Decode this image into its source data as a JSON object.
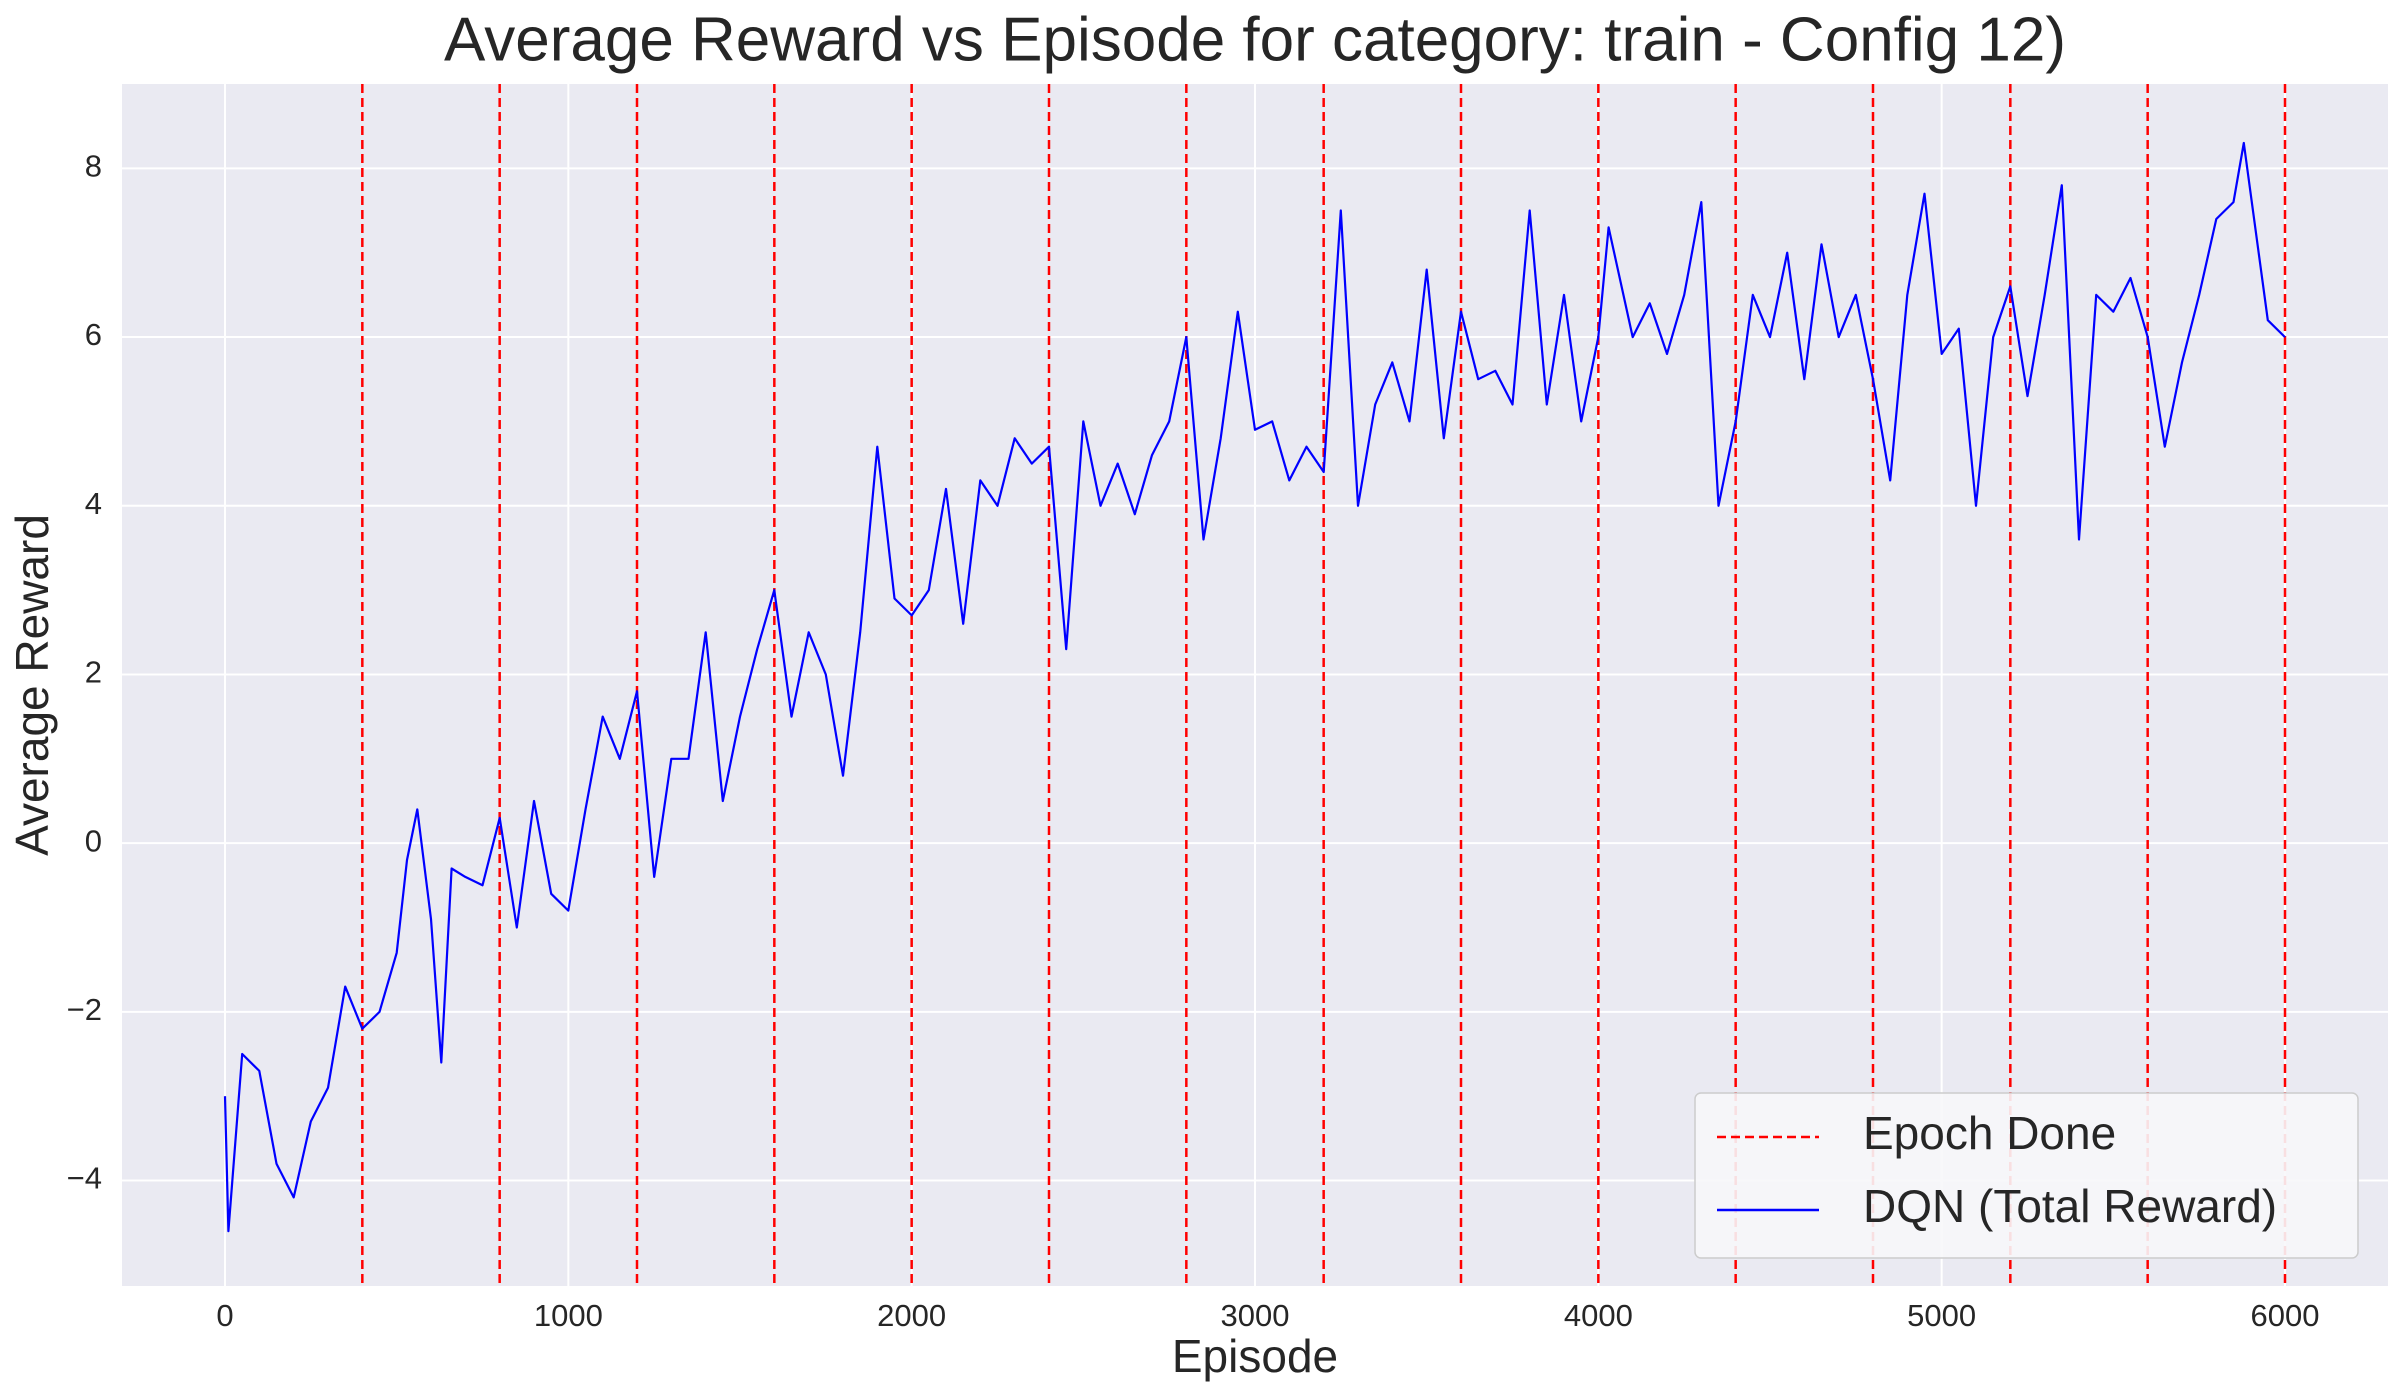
{
  "chart_data": {
    "type": "line",
    "title": "Average Reward vs Episode for category: train - Config 12)",
    "x_label": "Episode",
    "y_label": "Average Reward",
    "xlim": [
      -300,
      6300
    ],
    "ylim": [
      -5.25,
      9.0
    ],
    "xticks": [
      0,
      1000,
      2000,
      3000,
      4000,
      5000,
      6000
    ],
    "yticks": [
      {
        "value": -4,
        "label": "−4"
      },
      {
        "value": -2,
        "label": "−2"
      },
      0,
      2,
      4,
      6,
      8
    ],
    "grid": true,
    "legend": "lower right",
    "vlines": {
      "name": "Epoch Done",
      "color": "#ff0000",
      "values": [
        400,
        800,
        1200,
        1600,
        2000,
        2400,
        2800,
        3200,
        3600,
        4000,
        4400,
        4800,
        5200,
        5600,
        6000
      ]
    },
    "series": [
      {
        "name": "DQN (Total Reward)",
        "color": "#0000ff",
        "x": [
          0,
          10,
          50,
          100,
          150,
          200,
          250,
          300,
          350,
          400,
          450,
          500,
          530,
          560,
          600,
          630,
          660,
          700,
          750,
          800,
          850,
          900,
          950,
          1000,
          1050,
          1100,
          1150,
          1200,
          1250,
          1300,
          1350,
          1400,
          1450,
          1500,
          1550,
          1600,
          1650,
          1700,
          1750,
          1800,
          1850,
          1900,
          1950,
          2000,
          2050,
          2100,
          2150,
          2200,
          2250,
          2300,
          2350,
          2400,
          2450,
          2500,
          2550,
          2600,
          2650,
          2700,
          2750,
          2800,
          2850,
          2900,
          2950,
          3000,
          3050,
          3100,
          3150,
          3200,
          3250,
          3300,
          3350,
          3400,
          3450,
          3500,
          3550,
          3600,
          3650,
          3700,
          3750,
          3800,
          3850,
          3900,
          3950,
          4000,
          4030,
          4100,
          4150,
          4200,
          4250,
          4300,
          4350,
          4400,
          4450,
          4500,
          4550,
          4600,
          4650,
          4700,
          4750,
          4800,
          4850,
          4900,
          4950,
          5000,
          5050,
          5100,
          5150,
          5200,
          5250,
          5300,
          5350,
          5400,
          5450,
          5500,
          5550,
          5600,
          5650,
          5700,
          5750,
          5800,
          5850,
          5880,
          5950,
          6000
        ],
        "values": [
          -3.0,
          -4.6,
          -2.5,
          -2.7,
          -3.8,
          -4.2,
          -3.3,
          -2.9,
          -1.7,
          -2.2,
          -2.0,
          -1.3,
          -0.2,
          0.4,
          -0.9,
          -2.6,
          -0.3,
          -0.4,
          -0.5,
          0.3,
          -1.0,
          0.5,
          -0.6,
          -0.8,
          0.4,
          1.5,
          1.0,
          1.8,
          -0.4,
          1.0,
          1.0,
          2.5,
          0.5,
          1.5,
          2.3,
          3.0,
          1.5,
          2.5,
          2.0,
          0.8,
          2.5,
          4.7,
          2.9,
          2.7,
          3.0,
          4.2,
          2.6,
          4.3,
          4.0,
          4.8,
          4.5,
          4.7,
          2.3,
          5.0,
          4.0,
          4.5,
          3.9,
          4.6,
          5.0,
          6.0,
          3.6,
          4.8,
          6.3,
          4.9,
          5.0,
          4.3,
          4.7,
          4.4,
          7.5,
          4.0,
          5.2,
          5.7,
          5.0,
          6.8,
          4.8,
          6.3,
          5.5,
          5.6,
          5.2,
          7.5,
          5.2,
          6.5,
          5.0,
          6.0,
          7.3,
          6.0,
          6.4,
          5.8,
          6.5,
          7.6,
          4.0,
          5.0,
          6.5,
          6.0,
          7.0,
          5.5,
          7.1,
          6.0,
          6.5,
          5.5,
          4.3,
          6.5,
          7.7,
          5.8,
          6.1,
          4.0,
          6.0,
          6.6,
          5.3,
          6.5,
          7.8,
          3.6,
          6.5,
          6.3,
          6.7,
          6.0,
          4.7,
          5.7,
          6.5,
          7.4,
          7.6,
          8.3,
          6.2,
          6.0
        ]
      }
    ]
  }
}
